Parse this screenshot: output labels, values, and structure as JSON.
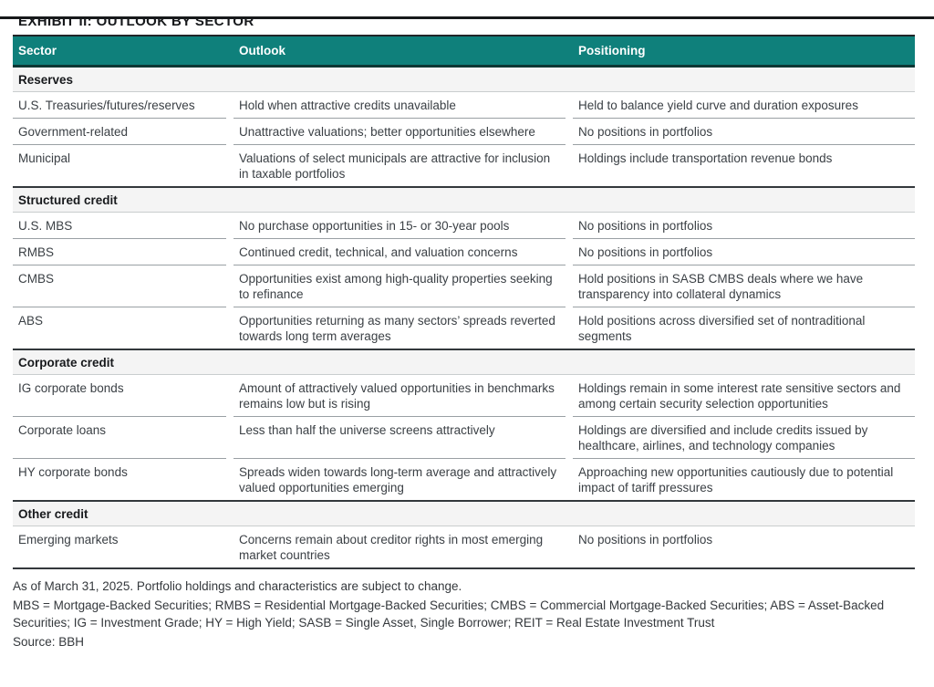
{
  "page": {
    "title": "EXHIBIT II: OUTLOOK BY SECTOR"
  },
  "table": {
    "columns": [
      "Sector",
      "Outlook",
      "Positioning"
    ],
    "sections": [
      {
        "name": "Reserves",
        "rows": [
          {
            "sector": "U.S. Treasuries/futures/reserves",
            "outlook": "Hold when attractive credits unavailable",
            "positioning": "Held to balance yield curve and duration exposures"
          },
          {
            "sector": "Government-related",
            "outlook": "Unattractive valuations; better opportunities elsewhere",
            "positioning": "No positions in portfolios"
          },
          {
            "sector": "Municipal",
            "outlook": "Valuations of select municipals are attractive for inclusion in taxable portfolios",
            "positioning": "Holdings include transportation revenue bonds"
          }
        ]
      },
      {
        "name": "Structured credit",
        "rows": [
          {
            "sector": "U.S. MBS",
            "outlook": "No purchase opportunities in 15- or 30-year pools",
            "positioning": "No positions in portfolios"
          },
          {
            "sector": "RMBS",
            "outlook": "Continued credit, technical, and valuation concerns",
            "positioning": "No positions in portfolios"
          },
          {
            "sector": "CMBS",
            "outlook": "Opportunities exist among high-quality properties seeking to refinance",
            "positioning": "Hold positions in SASB CMBS deals where we have transparency into collateral dynamics"
          },
          {
            "sector": "ABS",
            "outlook": "Opportunities returning as many sectors’ spreads reverted towards long term averages",
            "positioning": "Hold positions across diversified set of nontraditional segments"
          }
        ]
      },
      {
        "name": "Corporate credit",
        "rows": [
          {
            "sector": "IG corporate bonds",
            "outlook": "Amount of attractively valued opportunities in benchmarks remains low but is rising",
            "positioning": "Holdings remain in some interest rate sensitive sectors and among certain security selection opportunities"
          },
          {
            "sector": "Corporate loans",
            "outlook": "Less than half the universe screens attractively",
            "positioning": "Holdings are diversified and include credits issued by healthcare, airlines, and technology companies"
          },
          {
            "sector": "HY corporate bonds",
            "outlook": "Spreads widen towards long-term average and attractively valued opportunities emerging",
            "positioning": "Approaching new opportunities cautiously due to potential impact of tariff pressures"
          }
        ]
      },
      {
        "name": "Other credit",
        "rows": [
          {
            "sector": "Emerging markets",
            "outlook": "Concerns remain about creditor rights in most emerging market countries",
            "positioning": "No positions in portfolios"
          }
        ]
      }
    ]
  },
  "footnotes": {
    "as_of": "As of March 31, 2025. Portfolio holdings and characteristics are subject to change.",
    "legend": "MBS = Mortgage-Backed Securities; RMBS = Residential Mortgage-Backed Securities; CMBS = Commercial Mortgage-Backed Securities; ABS = Asset-Backed Securities; IG = Investment Grade; HY = High Yield; SASB = Single Asset, Single Borrower; REIT = Real Estate Investment Trust",
    "source": "Source: BBH"
  },
  "colors": {
    "header_bg": "#0F807B",
    "header_border": "#0B3734",
    "section_bg": "#F4F4F4",
    "heavy_border": "#33383C",
    "light_border": "#C9CDCE",
    "row_divider": "#9AA0A4",
    "text": "#3B4045",
    "heading_text": "#17191C"
  }
}
